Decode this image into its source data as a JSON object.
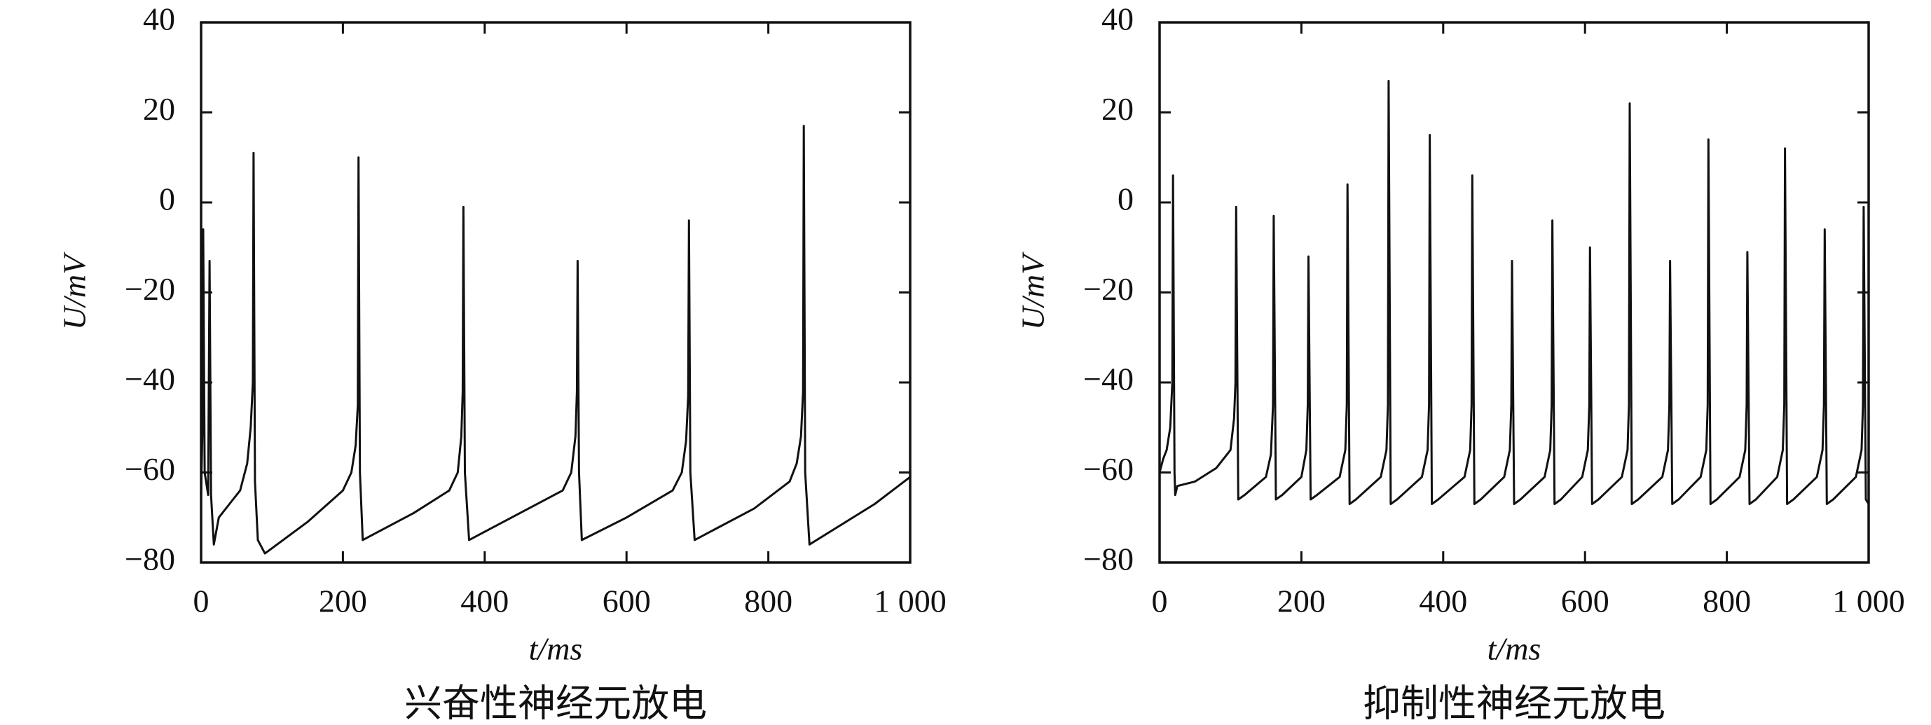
{
  "chart_data": [
    {
      "type": "line",
      "title": "兴奋性神经元放电",
      "xlabel": "t/ms",
      "ylabel": "U/mV",
      "xlim": [
        0,
        1000
      ],
      "ylim": [
        -80,
        40
      ],
      "xticks": [
        0,
        200,
        400,
        600,
        800,
        {
          "value": 1000,
          "label": "1 000"
        }
      ],
      "yticks": [
        {
          "value": -80,
          "label": "−80"
        },
        {
          "value": -60,
          "label": "−60"
        },
        {
          "value": -40,
          "label": "−40"
        },
        {
          "value": -20,
          "label": "−20"
        },
        0,
        20,
        40
      ],
      "grid": false,
      "x": [
        0,
        2,
        3,
        5,
        10,
        12,
        14,
        18,
        25,
        40,
        55,
        65,
        70,
        73,
        74,
        76,
        80,
        90,
        150,
        200,
        212,
        218,
        221,
        222,
        224,
        228,
        300,
        350,
        362,
        367,
        369,
        370,
        372,
        378,
        450,
        510,
        522,
        528,
        530,
        531,
        533,
        537,
        600,
        665,
        678,
        684,
        687,
        688,
        690,
        696,
        780,
        830,
        840,
        846,
        849,
        850,
        852,
        858,
        950,
        1000
      ],
      "series": [
        {
          "color": "#111111",
          "values": [
            -65,
            -50,
            -6,
            -60,
            -65,
            -13,
            -65,
            -76,
            -70,
            -67,
            -64,
            -58,
            -50,
            -40,
            11,
            -62,
            -75,
            -78,
            -71,
            -64,
            -60,
            -54,
            -45,
            10,
            -60,
            -75,
            -69,
            -64,
            -60,
            -52,
            -42,
            -1,
            -60,
            -75,
            -69,
            -64,
            -60,
            -52,
            -42,
            -13,
            -60,
            -75,
            -70,
            -64,
            -60,
            -53,
            -43,
            -4,
            -60,
            -75,
            -68,
            -62,
            -58,
            -52,
            -42,
            17,
            -60,
            -76,
            -67,
            -61
          ]
        }
      ]
    },
    {
      "type": "line",
      "title": "抑制性神经元放电",
      "xlabel": "t/ms",
      "ylabel": "U/mV",
      "xlim": [
        0,
        1000
      ],
      "ylim": [
        -80,
        40
      ],
      "xticks": [
        0,
        200,
        400,
        600,
        800,
        {
          "value": 1000,
          "label": "1 000"
        }
      ],
      "yticks": [
        {
          "value": -80,
          "label": "−80"
        },
        {
          "value": -60,
          "label": "−60"
        },
        {
          "value": -40,
          "label": "−40"
        },
        {
          "value": -20,
          "label": "−20"
        },
        0,
        20,
        40
      ],
      "grid": false,
      "x": [
        0,
        5,
        10,
        15,
        18,
        19,
        21,
        22,
        25,
        50,
        80,
        100,
        105,
        107,
        108,
        111,
        120,
        150,
        157,
        160,
        161,
        164,
        173,
        200,
        207,
        209,
        210,
        213,
        222,
        254,
        262,
        264,
        265,
        268,
        277,
        312,
        320,
        322,
        323,
        326,
        335,
        370,
        378,
        380,
        381,
        384,
        393,
        430,
        438,
        440,
        441,
        444,
        453,
        486,
        494,
        496,
        497,
        500,
        509,
        543,
        551,
        553,
        554,
        557,
        566,
        596,
        604,
        606,
        607,
        610,
        619,
        652,
        660,
        662,
        663,
        666,
        675,
        709,
        717,
        719,
        720,
        723,
        732,
        763,
        771,
        773,
        774,
        777,
        786,
        818,
        826,
        828,
        829,
        832,
        841,
        871,
        879,
        881,
        882,
        885,
        894,
        927,
        935,
        937,
        938,
        941,
        950,
        982,
        990,
        992,
        993,
        996,
        1000
      ],
      "series": [
        {
          "color": "#111111",
          "values": [
            -60,
            -57,
            -55,
            -50,
            -40,
            6,
            -60,
            -65,
            -63,
            -62,
            -59,
            -55,
            -48,
            -40,
            -1,
            -66,
            -65,
            -61,
            -56,
            -45,
            -3,
            -66,
            -65,
            -61,
            -55,
            -45,
            -12,
            -66,
            -65,
            -61,
            -55,
            -45,
            4,
            -67,
            -66,
            -61,
            -55,
            -45,
            27,
            -67,
            -66,
            -61,
            -55,
            -45,
            15,
            -67,
            -66,
            -61,
            -55,
            -45,
            6,
            -67,
            -66,
            -61,
            -55,
            -45,
            -13,
            -67,
            -66,
            -61,
            -55,
            -45,
            -4,
            -67,
            -66,
            -61,
            -55,
            -45,
            -10,
            -67,
            -66,
            -61,
            -55,
            -45,
            22,
            -67,
            -66,
            -61,
            -55,
            -45,
            -13,
            -67,
            -66,
            -61,
            -55,
            -45,
            14,
            -67,
            -66,
            -61,
            -55,
            -45,
            -11,
            -67,
            -66,
            -61,
            -55,
            -45,
            12,
            -67,
            -66,
            -61,
            -55,
            -45,
            -6,
            -67,
            -66,
            -61,
            -55,
            -45,
            -1,
            -66,
            -67
          ]
        }
      ]
    }
  ]
}
